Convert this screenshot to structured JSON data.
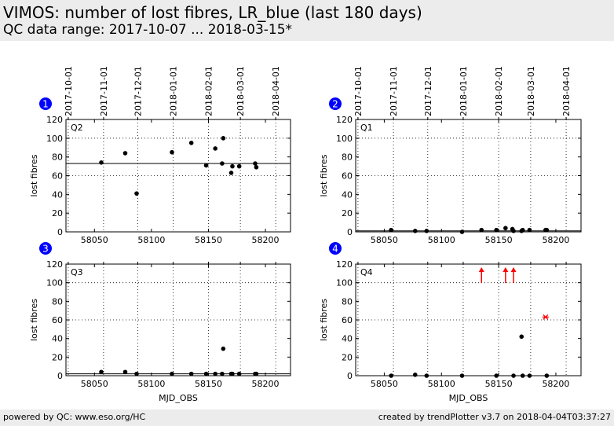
{
  "header": {
    "title": "VIMOS: number of lost fibres, LR_blue (last 180 days)",
    "subtitle": "QC data range: 2017-10-07 ... 2018-03-15*"
  },
  "footer": {
    "left": "powered by QC: www.eso.org/HC",
    "right": "created by trendPlotter v3.7 on 2018-04-04T03:37:27"
  },
  "colors": {
    "marker": "#000000",
    "outlier": "#ff0000",
    "badge": "#0000ff",
    "header_bg": "#ececec"
  },
  "chart_data": [
    {
      "type": "scatter",
      "badge": "1",
      "panel_label": "Q2",
      "xlabel": "",
      "ylabel": "lost fibres",
      "xlim": [
        58025,
        58222
      ],
      "ylim": [
        0,
        120
      ],
      "yticks": [
        0,
        20,
        40,
        60,
        80,
        100,
        120
      ],
      "xticks": [
        58050,
        58100,
        58150,
        58200
      ],
      "date_ticks": [
        {
          "mjd": 58027,
          "label": "2017-10-01"
        },
        {
          "mjd": 58058,
          "label": "2017-11-01"
        },
        {
          "mjd": 58088,
          "label": "2017-12-01"
        },
        {
          "mjd": 58119,
          "label": "2018-01-01"
        },
        {
          "mjd": 58150,
          "label": "2018-02-01"
        },
        {
          "mjd": 58178,
          "label": "2018-03-01"
        },
        {
          "mjd": 58209,
          "label": "2018-04-01"
        }
      ],
      "reference_line": 73,
      "threshold_lines": [
        60,
        100
      ],
      "show_date_labels": true,
      "points": [
        {
          "x": 58056,
          "y": 74
        },
        {
          "x": 58077,
          "y": 84
        },
        {
          "x": 58087,
          "y": 41
        },
        {
          "x": 58118,
          "y": 85
        },
        {
          "x": 58135,
          "y": 95
        },
        {
          "x": 58148,
          "y": 71
        },
        {
          "x": 58156,
          "y": 89
        },
        {
          "x": 58162,
          "y": 73
        },
        {
          "x": 58163,
          "y": 100
        },
        {
          "x": 58170,
          "y": 63
        },
        {
          "x": 58171,
          "y": 70
        },
        {
          "x": 58177,
          "y": 70
        },
        {
          "x": 58191,
          "y": 73
        },
        {
          "x": 58192,
          "y": 69
        }
      ],
      "outliers": []
    },
    {
      "type": "scatter",
      "badge": "2",
      "panel_label": "Q1",
      "xlabel": "",
      "ylabel": "lost fibres",
      "xlim": [
        58025,
        58222
      ],
      "ylim": [
        0,
        120
      ],
      "yticks": [
        0,
        20,
        40,
        60,
        80,
        100,
        120
      ],
      "xticks": [
        58050,
        58100,
        58150,
        58200
      ],
      "date_ticks": [
        {
          "mjd": 58027,
          "label": "2017-10-01"
        },
        {
          "mjd": 58058,
          "label": "2017-11-01"
        },
        {
          "mjd": 58088,
          "label": "2017-12-01"
        },
        {
          "mjd": 58119,
          "label": "2018-01-01"
        },
        {
          "mjd": 58150,
          "label": "2018-02-01"
        },
        {
          "mjd": 58178,
          "label": "2018-03-01"
        },
        {
          "mjd": 58209,
          "label": "2018-04-01"
        }
      ],
      "reference_line": 1,
      "threshold_lines": [
        60,
        100
      ],
      "show_date_labels": true,
      "points": [
        {
          "x": 58056,
          "y": 2
        },
        {
          "x": 58077,
          "y": 1
        },
        {
          "x": 58087,
          "y": 1
        },
        {
          "x": 58118,
          "y": 0
        },
        {
          "x": 58135,
          "y": 2
        },
        {
          "x": 58148,
          "y": 2
        },
        {
          "x": 58156,
          "y": 4
        },
        {
          "x": 58162,
          "y": 3
        },
        {
          "x": 58163,
          "y": 1
        },
        {
          "x": 58170,
          "y": 1
        },
        {
          "x": 58171,
          "y": 2
        },
        {
          "x": 58177,
          "y": 2
        },
        {
          "x": 58191,
          "y": 2
        },
        {
          "x": 58192,
          "y": 2
        }
      ],
      "outliers": []
    },
    {
      "type": "scatter",
      "badge": "3",
      "panel_label": "Q3",
      "xlabel": "MJD_OBS",
      "ylabel": "lost fibres",
      "xlim": [
        58025,
        58222
      ],
      "ylim": [
        0,
        120
      ],
      "yticks": [
        0,
        20,
        40,
        60,
        80,
        100,
        120
      ],
      "xticks": [
        58050,
        58100,
        58150,
        58200
      ],
      "date_ticks": [
        {
          "mjd": 58027,
          "label": "2017-10-01"
        },
        {
          "mjd": 58058,
          "label": "2017-11-01"
        },
        {
          "mjd": 58088,
          "label": "2017-12-01"
        },
        {
          "mjd": 58119,
          "label": "2018-01-01"
        },
        {
          "mjd": 58150,
          "label": "2018-02-01"
        },
        {
          "mjd": 58178,
          "label": "2018-03-01"
        },
        {
          "mjd": 58209,
          "label": "2018-04-01"
        }
      ],
      "reference_line": 2,
      "threshold_lines": [
        60,
        100
      ],
      "show_date_labels": false,
      "points": [
        {
          "x": 58056,
          "y": 4
        },
        {
          "x": 58077,
          "y": 4
        },
        {
          "x": 58087,
          "y": 2
        },
        {
          "x": 58118,
          "y": 2
        },
        {
          "x": 58135,
          "y": 2
        },
        {
          "x": 58148,
          "y": 2
        },
        {
          "x": 58156,
          "y": 2
        },
        {
          "x": 58162,
          "y": 2
        },
        {
          "x": 58163,
          "y": 29
        },
        {
          "x": 58170,
          "y": 2
        },
        {
          "x": 58171,
          "y": 2
        },
        {
          "x": 58177,
          "y": 2
        },
        {
          "x": 58191,
          "y": 2
        },
        {
          "x": 58192,
          "y": 2
        }
      ],
      "outliers": []
    },
    {
      "type": "scatter",
      "badge": "4",
      "panel_label": "Q4",
      "xlabel": "MJD_OBS",
      "ylabel": "lost fibres",
      "xlim": [
        58025,
        58222
      ],
      "ylim": [
        0,
        120
      ],
      "yticks": [
        0,
        20,
        40,
        60,
        80,
        100,
        120
      ],
      "xticks": [
        58050,
        58100,
        58150,
        58200
      ],
      "date_ticks": [
        {
          "mjd": 58027,
          "label": "2017-10-01"
        },
        {
          "mjd": 58058,
          "label": "2017-11-01"
        },
        {
          "mjd": 58088,
          "label": "2017-12-01"
        },
        {
          "mjd": 58119,
          "label": "2018-01-01"
        },
        {
          "mjd": 58150,
          "label": "2018-02-01"
        },
        {
          "mjd": 58178,
          "label": "2018-03-01"
        },
        {
          "mjd": 58209,
          "label": "2018-04-01"
        }
      ],
      "reference_line": 0,
      "threshold_lines": [
        60,
        100
      ],
      "show_date_labels": false,
      "points": [
        {
          "x": 58056,
          "y": 0
        },
        {
          "x": 58077,
          "y": 1
        },
        {
          "x": 58087,
          "y": 0
        },
        {
          "x": 58118,
          "y": 0
        },
        {
          "x": 58148,
          "y": 0
        },
        {
          "x": 58163,
          "y": 0
        },
        {
          "x": 58170,
          "y": 42
        },
        {
          "x": 58171,
          "y": 0
        },
        {
          "x": 58177,
          "y": 0
        },
        {
          "x": 58192,
          "y": 0
        }
      ],
      "outliers": [
        {
          "x": 58135,
          "type": "above-range"
        },
        {
          "x": 58156,
          "type": "above-range"
        },
        {
          "x": 58163,
          "type": "above-range"
        },
        {
          "x": 58191,
          "y": 63,
          "type": "flagged"
        }
      ]
    }
  ]
}
